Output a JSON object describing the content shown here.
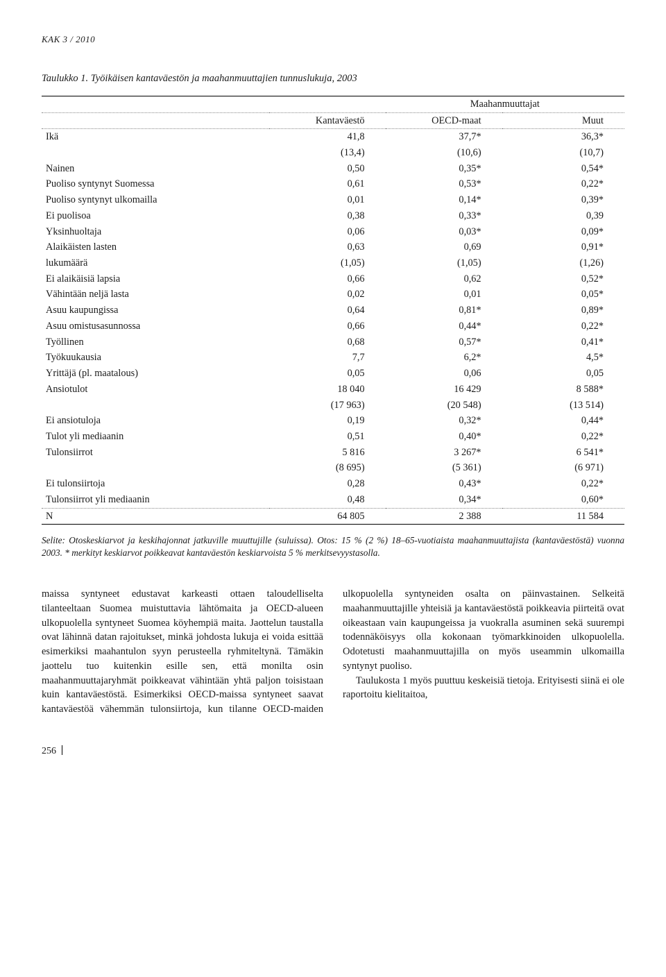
{
  "running_header": "KAK 3 / 2010",
  "table": {
    "title": "Taulukko 1. Työikäisen kantaväestön ja maahanmuuttajien tunnuslukuja, 2003",
    "super_header": "Maahanmuuttajat",
    "columns": [
      "",
      "Kantaväestö",
      "OECD-maat",
      "Muut"
    ],
    "rows": [
      [
        "Ikä",
        "41,8",
        "37,7*",
        "36,3*"
      ],
      [
        "",
        "(13,4)",
        "(10,6)",
        "(10,7)"
      ],
      [
        "Nainen",
        "0,50",
        "0,35*",
        "0,54*"
      ],
      [
        "Puoliso syntynyt Suomessa",
        "0,61",
        "0,53*",
        "0,22*"
      ],
      [
        "Puoliso syntynyt ulkomailla",
        "0,01",
        "0,14*",
        "0,39*"
      ],
      [
        "Ei puolisoa",
        "0,38",
        "0,33*",
        "0,39"
      ],
      [
        "Yksinhuoltaja",
        "0,06",
        "0,03*",
        "0,09*"
      ],
      [
        "Alaikäisten lasten",
        "0,63",
        "0,69",
        "0,91*"
      ],
      [
        "lukumäärä",
        "(1,05)",
        "(1,05)",
        "(1,26)"
      ],
      [
        "Ei alaikäisiä lapsia",
        "0,66",
        "0,62",
        "0,52*"
      ],
      [
        "Vähintään neljä lasta",
        "0,02",
        "0,01",
        "0,05*"
      ],
      [
        "Asuu kaupungissa",
        "0,64",
        "0,81*",
        "0,89*"
      ],
      [
        "Asuu omistusasunnossa",
        "0,66",
        "0,44*",
        "0,22*"
      ],
      [
        "Työllinen",
        "0,68",
        "0,57*",
        "0,41*"
      ],
      [
        "Työkuukausia",
        "7,7",
        "6,2*",
        "4,5*"
      ],
      [
        "Yrittäjä (pl. maatalous)",
        "0,05",
        "0,06",
        "0,05"
      ],
      [
        "Ansiotulot",
        "18 040",
        "16 429",
        "8 588*"
      ],
      [
        "",
        "(17 963)",
        "(20 548)",
        "(13 514)"
      ],
      [
        "Ei ansiotuloja",
        "0,19",
        "0,32*",
        "0,44*"
      ],
      [
        "Tulot yli mediaanin",
        "0,51",
        "0,40*",
        "0,22*"
      ],
      [
        "Tulonsiirrot",
        "5 816",
        "3 267*",
        "6 541*"
      ],
      [
        "",
        "(8 695)",
        "(5 361)",
        "(6 971)"
      ],
      [
        "Ei tulonsiirtoja",
        "0,28",
        "0,43*",
        "0,22*"
      ],
      [
        "Tulonsiirrot yli mediaanin",
        "0,48",
        "0,34*",
        "0,60*"
      ],
      [
        "N",
        "64 805",
        "2 388",
        "11 584"
      ]
    ],
    "note": "Selite: Otoskeskiarvot ja keskihajonnat jatkuville muuttujille (suluissa). Otos: 15 % (2 %) 18–65-vuotiaista maahanmuuttajista (kantaväestöstä) vuonna 2003. * merkityt keskiarvot poikkeavat kantaväestön keskiarvoista 5 % merkitsevyystasolla."
  },
  "body": {
    "p1": "maissa syntyneet edustavat karkeasti ottaen taloudelliselta tilanteeltaan Suomea muistuttavia lähtömaita ja OECD-alueen ulkopuolella syntyneet Suomea köyhempiä maita. Jaottelun taustalla ovat lähinnä datan rajoitukset, minkä johdosta lukuja ei voida esittää esimerkiksi maahantulon syyn perusteella ryhmiteltynä. Tämäkin jaottelu tuo kuitenkin esille sen, että monilta osin maahanmuuttajaryhmät poikkeavat vähintään yhtä paljon toisistaan kuin kantaväestöstä. Esimerkiksi OECD-maissa syntyneet saavat kantaväestöä vähemmän tulonsiirtoja, kun tilanne OECD-maiden ulkopuolella syntyneiden osalta on päinvastainen. Selkeitä maahanmuuttajille yhteisiä ja kantaväestöstä poikkeavia piirteitä ovat oikeastaan vain kaupungeissa ja vuokralla asuminen sekä suurempi todennäköisyys olla kokonaan työmarkkinoiden ulkopuolella. Odotetusti maahanmuuttajilla on myös useammin ulkomailla syntynyt puoliso.",
    "p2": "Taulukosta 1 myös puuttuu keskeisiä tietoja. Erityisesti siinä ei ole raportoitu kielitaitoa,"
  },
  "page_number": "256"
}
